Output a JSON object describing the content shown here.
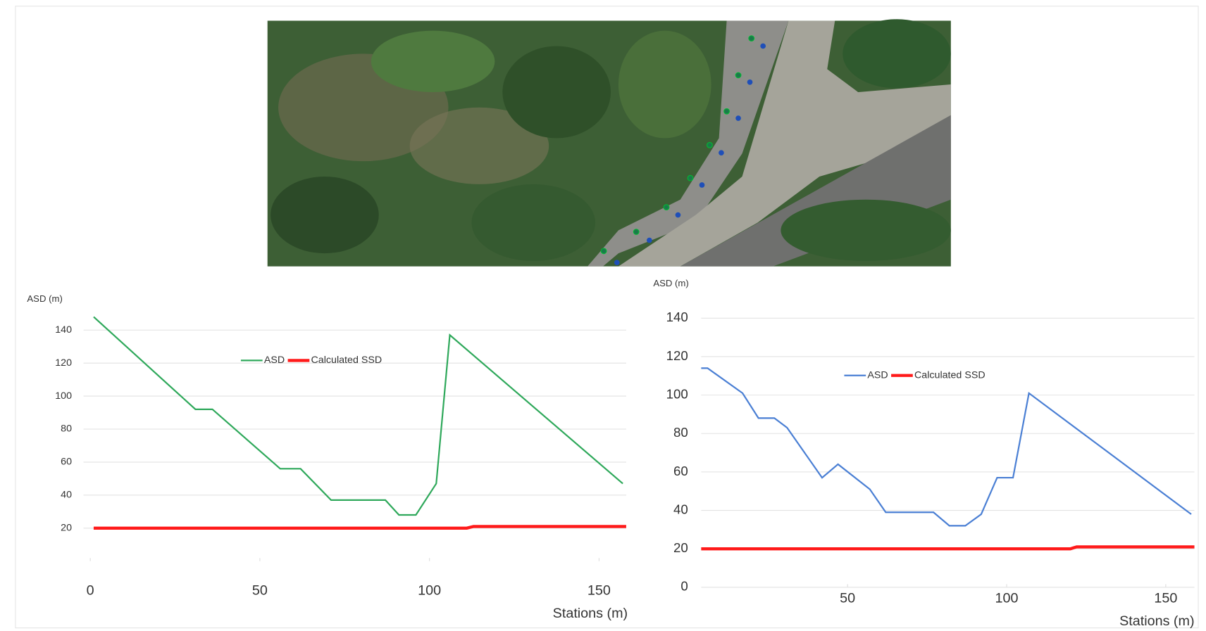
{
  "chart_data": [
    {
      "type": "line",
      "ylabel": "ASD (m)",
      "xlabel": "Stations (m)",
      "xlim": [
        -2,
        158
      ],
      "xticks": [
        0,
        50,
        100,
        150
      ],
      "ylim": [
        0,
        160
      ],
      "yticks": [
        20,
        40,
        60,
        80,
        100,
        120,
        140
      ],
      "grid": true,
      "series": [
        {
          "name": "ASD",
          "color": "#2ea85a",
          "x": [
            1,
            31,
            36,
            56,
            62,
            71,
            87,
            91,
            96,
            102,
            106,
            157
          ],
          "values": [
            148,
            92,
            92,
            56,
            56,
            37,
            37,
            28,
            28,
            47,
            137,
            47
          ]
        },
        {
          "name": "Calculated SSD",
          "color": "#ff1a1a",
          "x": [
            1,
            111,
            113,
            158
          ],
          "values": [
            20,
            20,
            21,
            21
          ]
        }
      ]
    },
    {
      "type": "line",
      "ylabel": "ASD (m)",
      "xlabel": "Stations (m)",
      "xlim": [
        4,
        159
      ],
      "xticks": [
        50,
        100,
        150
      ],
      "ylim": [
        0,
        145
      ],
      "yticks": [
        0,
        20,
        40,
        60,
        80,
        100,
        120,
        140
      ],
      "grid": true,
      "series": [
        {
          "name": "ASD",
          "color": "#4a7fd4",
          "x": [
            4,
            6,
            17,
            22,
            27,
            31,
            42,
            47,
            57,
            62,
            77,
            82,
            87,
            92,
            97,
            102,
            107,
            158
          ],
          "values": [
            114,
            114,
            101,
            88,
            88,
            83,
            57,
            64,
            51,
            39,
            39,
            32,
            32,
            38,
            57,
            57,
            101,
            38
          ]
        },
        {
          "name": "Calculated SSD",
          "color": "#ff1a1a",
          "x": [
            4,
            120,
            122,
            159
          ],
          "values": [
            20,
            20,
            21,
            21
          ]
        }
      ]
    }
  ]
}
